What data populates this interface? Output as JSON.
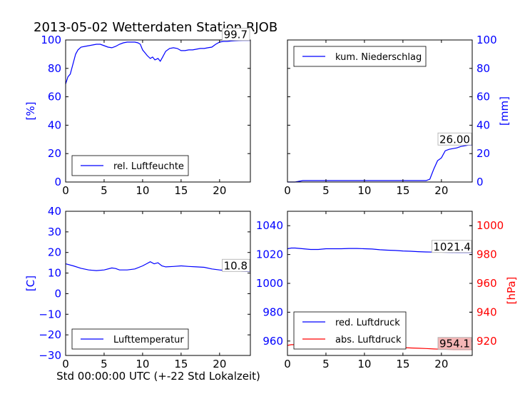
{
  "figure": {
    "title": "2013-05-02 Wetterdaten Station RJOB",
    "xlabel": "Std 00:00:00 UTC (+-22 Std Lokalzeit)"
  },
  "colors": {
    "blue": "#0000ff",
    "red": "#ff0000",
    "black": "#000000",
    "highlight": "#f4b6b6"
  },
  "chart_data": [
    {
      "type": "line",
      "panel": "top-left",
      "xlim": [
        0,
        24
      ],
      "ylim": [
        0,
        100
      ],
      "xticks": [
        "0",
        "5",
        "10",
        "15",
        "20"
      ],
      "yticks": [
        "0",
        "20",
        "40",
        "60",
        "80",
        "100"
      ],
      "ylabel": "[%]",
      "legend": {
        "label": "rel. Luftfeuchte",
        "placement": "lower-left"
      },
      "annotation": "99.7",
      "series": [
        {
          "name": "rel. Luftfeuchte",
          "color": "#0000ff",
          "x": [
            0,
            0.3,
            0.6,
            1,
            1.3,
            1.6,
            2,
            2.5,
            3,
            3.5,
            4,
            4.5,
            5,
            5.5,
            6,
            6.5,
            7,
            7.5,
            8,
            8.5,
            9,
            9.4,
            9.7,
            10,
            10.3,
            10.6,
            11,
            11.3,
            11.6,
            12,
            12.3,
            12.6,
            13,
            13.5,
            14,
            14.5,
            15,
            15.5,
            16,
            16.5,
            17,
            17.5,
            18,
            18.5,
            19,
            19.5,
            20,
            20.5,
            21,
            21.5,
            22,
            22.5,
            23,
            23.5,
            24
          ],
          "y": [
            69,
            74,
            76,
            84,
            90,
            93,
            95,
            95.5,
            96,
            96.5,
            97,
            97,
            96,
            95,
            94.5,
            95.5,
            97,
            98,
            98.5,
            98.5,
            98.5,
            98,
            97,
            93,
            91,
            89,
            87,
            88,
            86,
            87,
            85,
            88,
            92,
            94,
            94.5,
            94,
            92.5,
            92.5,
            93,
            93,
            93.5,
            94,
            94,
            94.5,
            95,
            97,
            98.5,
            99,
            99,
            99.3,
            99.5,
            99.6,
            99.7,
            99.7,
            99.7
          ]
        }
      ]
    },
    {
      "type": "line",
      "panel": "top-right",
      "xlim": [
        0,
        24
      ],
      "ylim": [
        0,
        100
      ],
      "xticks": [
        "0",
        "5",
        "10",
        "15",
        "20"
      ],
      "yticks": [
        "0",
        "20",
        "40",
        "60",
        "80",
        "100"
      ],
      "ylabel": "[mm]",
      "legend": {
        "label": "kum. Niederschlag",
        "placement": "upper-left"
      },
      "annotation": "26.00",
      "series": [
        {
          "name": "kum. Niederschlag",
          "color": "#0000ff",
          "x": [
            0,
            1,
            1.5,
            2,
            3,
            5,
            10,
            15,
            18,
            18.5,
            19,
            19.5,
            20,
            20.5,
            21,
            21.5,
            22,
            22.5,
            23,
            23.5,
            24
          ],
          "y": [
            0,
            0,
            0.5,
            1,
            1,
            1,
            1,
            1,
            1,
            2,
            9,
            15,
            17,
            22,
            23,
            23.5,
            24,
            25,
            25.5,
            26,
            26
          ]
        }
      ]
    },
    {
      "type": "line",
      "panel": "bottom-left",
      "xlim": [
        0,
        24
      ],
      "ylim": [
        -30,
        40
      ],
      "xticks": [
        "0",
        "5",
        "10",
        "15",
        "20"
      ],
      "yticks": [
        "−30",
        "−20",
        "−10",
        "0",
        "10",
        "20",
        "30",
        "40"
      ],
      "ylabel": "[C]",
      "legend": {
        "label": "Lufttemperatur",
        "placement": "lower-left"
      },
      "annotation": "10.8",
      "series": [
        {
          "name": "Lufttemperatur",
          "color": "#0000ff",
          "x": [
            0,
            1,
            2,
            3,
            4,
            5,
            6,
            6.5,
            7,
            8,
            9,
            10,
            10.5,
            11,
            11.5,
            12,
            12.5,
            13,
            14,
            15,
            16,
            17,
            18,
            19,
            20,
            21,
            22,
            23,
            24
          ],
          "y": [
            14.5,
            13.5,
            12.3,
            11.5,
            11.2,
            11.5,
            12.5,
            12.2,
            11.5,
            11.5,
            12,
            13.5,
            14.5,
            15.5,
            14.5,
            15,
            13.5,
            13,
            13.2,
            13.5,
            13.2,
            13,
            12.8,
            12,
            11.5,
            11.2,
            11,
            10.9,
            10.8
          ]
        }
      ]
    },
    {
      "type": "line",
      "panel": "bottom-right",
      "xlim": [
        0,
        24
      ],
      "ylim": [
        950,
        1050
      ],
      "xticks": [
        "0",
        "5",
        "10",
        "15",
        "20"
      ],
      "yticks": [
        "960",
        "980",
        "1000",
        "1020",
        "1040"
      ],
      "y2lim": [
        910,
        1010
      ],
      "y2ticks": [
        "920",
        "940",
        "960",
        "980",
        "1000"
      ],
      "y2label": "[hPa]",
      "legend": {
        "labels": [
          "red. Luftdruck",
          "abs. Luftdruck"
        ],
        "placement": "lower-left"
      },
      "annotations": [
        "1021.4",
        "954.1"
      ],
      "series": [
        {
          "name": "red. Luftdruck",
          "color": "#0000ff",
          "x": [
            0,
            0.5,
            1,
            2,
            3,
            4,
            5,
            6,
            7,
            8,
            9,
            10,
            11,
            12,
            13,
            14,
            15,
            16,
            17,
            18,
            19,
            20,
            21,
            22,
            23,
            24
          ],
          "y": [
            1024,
            1024.5,
            1024.5,
            1024,
            1023.5,
            1023.5,
            1024,
            1024,
            1024,
            1024.2,
            1024.2,
            1024,
            1023.8,
            1023.3,
            1023,
            1022.8,
            1022.5,
            1022.3,
            1022,
            1021.8,
            1021.7,
            1021.6,
            1021.5,
            1021.4,
            1021.4,
            1021.4
          ]
        },
        {
          "name": "abs. Luftdruck",
          "color": "#ff0000",
          "x": [
            0,
            0.5,
            1,
            2,
            3,
            4,
            5,
            6,
            7,
            8,
            9,
            10,
            11,
            12,
            13,
            14,
            15,
            16,
            17,
            18,
            19,
            20,
            21,
            22,
            23,
            24
          ],
          "y": [
            957,
            957.5,
            957.5,
            957,
            956.5,
            956.3,
            956.8,
            957,
            957,
            957,
            957,
            957,
            956.8,
            956.5,
            956,
            955.8,
            955.5,
            955.2,
            955,
            954.8,
            954.5,
            954.3,
            954.2,
            954.1,
            954.1,
            954.1
          ]
        }
      ]
    }
  ]
}
